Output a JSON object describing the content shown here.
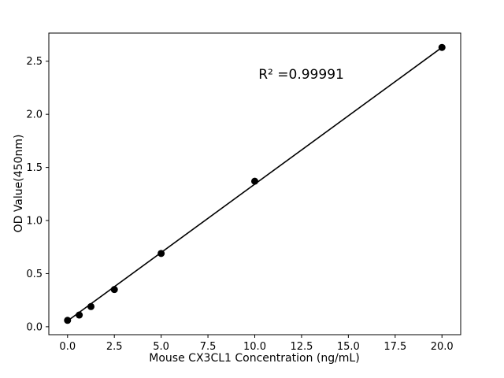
{
  "chart_data": {
    "type": "scatter",
    "title": "",
    "xlabel": "Mouse CX3CL1 Concentration (ng/mL)",
    "ylabel": "OD Value(450nm)",
    "x": [
      0,
      0.625,
      1.25,
      2.5,
      5,
      10,
      20
    ],
    "y": [
      0.06,
      0.11,
      0.19,
      0.35,
      0.69,
      1.37,
      2.63
    ],
    "line": {
      "x": [
        0,
        20
      ],
      "y": [
        0.055,
        2.63
      ]
    },
    "annotation": {
      "text": "R² =0.99991",
      "x": 10.2,
      "y": 2.37
    },
    "xlim": [
      -1,
      21
    ],
    "ylim": [
      -0.075,
      2.765
    ],
    "xticks": [
      0.0,
      2.5,
      5.0,
      7.5,
      10.0,
      12.5,
      15.0,
      17.5,
      20.0
    ],
    "xtick_labels": [
      "0.0",
      "2.5",
      "5.0",
      "7.5",
      "10.0",
      "12.5",
      "15.0",
      "17.5",
      "20.0"
    ],
    "yticks": [
      0.0,
      0.5,
      1.0,
      1.5,
      2.0,
      2.5
    ],
    "ytick_labels": [
      "0.0",
      "0.5",
      "1.0",
      "1.5",
      "2.0",
      "2.5"
    ],
    "grid": false,
    "legend": null,
    "colors": {
      "marker": "#000000",
      "line": "#000000",
      "frame": "#000000",
      "background": "#ffffff"
    }
  }
}
